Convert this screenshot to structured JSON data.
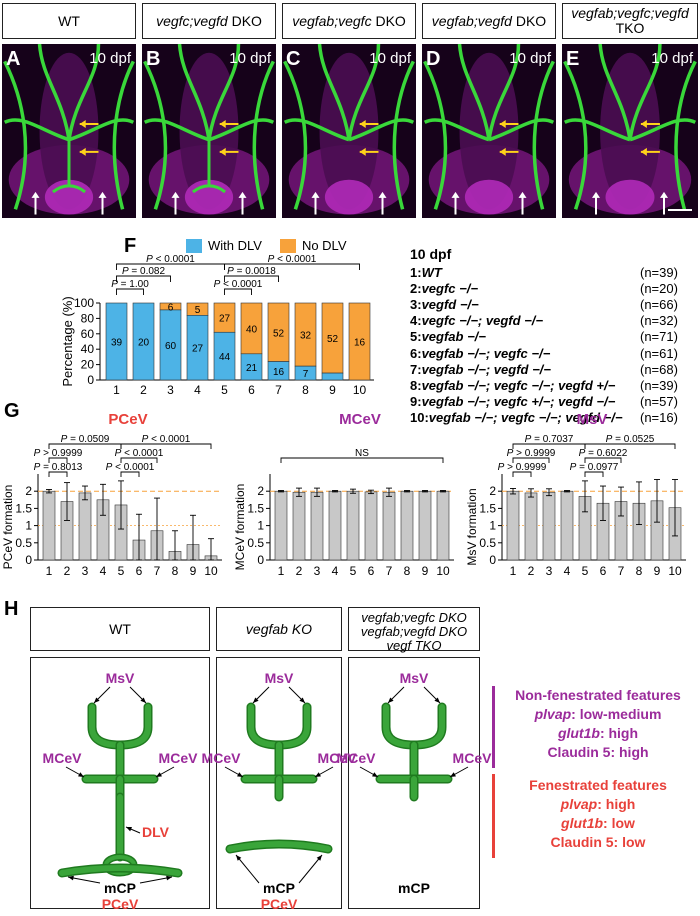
{
  "panel_headers": [
    {
      "id": "A",
      "line1": "WT",
      "line2": ""
    },
    {
      "id": "B",
      "line1": "vegfc;vegfd",
      "line1_suffix": " DKO",
      "line2": ""
    },
    {
      "id": "C",
      "line1": "vegfab;vegfc",
      "line1_suffix": " DKO",
      "line2": ""
    },
    {
      "id": "D",
      "line1": "vegfab;vegfd",
      "line1_suffix": " DKO",
      "line2": ""
    },
    {
      "id": "E",
      "line1": "vegfab;vegfc;vegfd",
      "line1_suffix": "",
      "line2": "TKO"
    }
  ],
  "micro_labels": [
    "A",
    "B",
    "C",
    "D",
    "E"
  ],
  "dpf_label": "10 dpf",
  "panelF": {
    "label": "F",
    "legend": [
      {
        "name": "With DLV",
        "color": "#4db3e6"
      },
      {
        "name": "No DLV",
        "color": "#f7a23b"
      }
    ],
    "cond_title": "10 dpf",
    "conditions": [
      {
        "n": "1:",
        "g": "WT",
        "count": "(n=39)"
      },
      {
        "n": "2:",
        "g": "vegfc −/−",
        "count": "(n=20)"
      },
      {
        "n": "3:",
        "g": "vegfd −/−",
        "count": "(n=66)"
      },
      {
        "n": "4:",
        "g": "vegfc −/−; vegfd −/−",
        "count": "(n=32)"
      },
      {
        "n": "5:",
        "g": "vegfab −/−",
        "count": "(n=71)"
      },
      {
        "n": "6:",
        "g": "vegfab −/−; vegfc −/−",
        "count": "(n=61)"
      },
      {
        "n": "7:",
        "g": "vegfab −/−; vegfd −/−",
        "count": "(n=68)"
      },
      {
        "n": "8:",
        "g": "vegfab −/−; vegfc −/−; vegfd +/−",
        "count": "(n=39)"
      },
      {
        "n": "9:",
        "g": "vegfab −/−; vegfc +/−; vegfd −/−",
        "count": "(n=57)"
      },
      {
        "n": "10:",
        "g": "vegfab −/−; vegfc −/−; vegfd −/−",
        "count": "(n=16)"
      }
    ],
    "pvals": [
      "P < 0.0001",
      "P = 0.082",
      "P = 1.00",
      "P < 0.0001",
      "P = 0.0018",
      "P < 0.0001"
    ]
  },
  "chart_data": [
    {
      "type": "bar",
      "stacked": true,
      "categories": [
        "1",
        "2",
        "3",
        "4",
        "5",
        "6",
        "7",
        "8",
        "9",
        "10"
      ],
      "series": [
        {
          "name": "With DLV",
          "values": [
            100,
            100,
            91,
            84,
            62,
            34,
            24,
            18,
            9,
            0
          ],
          "counts": [
            "39",
            "20",
            "60",
            "27",
            "44",
            "21",
            "16",
            "7",
            "",
            ""
          ]
        },
        {
          "name": "No DLV",
          "values": [
            0,
            0,
            9,
            16,
            38,
            66,
            76,
            82,
            91,
            100
          ],
          "counts": [
            "",
            "",
            "6",
            "5",
            "27",
            "40",
            "52",
            "32",
            "52",
            "16"
          ]
        }
      ],
      "ylabel": "Percentage (%)",
      "ylim": [
        0,
        100
      ],
      "yticks": [
        "0",
        "20",
        "40",
        "60",
        "80",
        "100"
      ]
    },
    {
      "type": "bar",
      "title": "PCeV",
      "categories": [
        "1",
        "2",
        "3",
        "4",
        "5",
        "6",
        "7",
        "8",
        "9",
        "10"
      ],
      "values": [
        2.0,
        1.7,
        1.95,
        1.75,
        1.6,
        0.58,
        0.85,
        0.25,
        0.45,
        0.12
      ],
      "errors": [
        0.05,
        0.55,
        0.2,
        0.45,
        0.7,
        0.75,
        0.95,
        0.6,
        0.85,
        0.5
      ],
      "ylabel": "PCeV formation",
      "ylim": [
        0,
        2.5
      ],
      "yticks": [
        "0",
        "0.5",
        "1",
        "1.5",
        "2"
      ],
      "pvals": [
        "P = 0.0509",
        "P > 0.9999",
        "P = 0.8013",
        "P < 0.0001",
        "P < 0.0001",
        "P < 0.0001"
      ]
    },
    {
      "type": "bar",
      "title": "MCeV",
      "categories": [
        "1",
        "2",
        "3",
        "4",
        "5",
        "6",
        "7",
        "8",
        "9",
        "10"
      ],
      "values": [
        2.0,
        1.97,
        1.97,
        2.0,
        2.0,
        1.98,
        1.97,
        2.0,
        2.0,
        2.0
      ],
      "errors": [
        0.02,
        0.12,
        0.12,
        0.02,
        0.06,
        0.05,
        0.12,
        0.02,
        0.02,
        0.02
      ],
      "ylabel": "MCeV formation",
      "ylim": [
        0,
        2.5
      ],
      "yticks": [
        "0",
        "0.5",
        "1",
        "1.5",
        "2"
      ],
      "pvals": [
        "NS"
      ]
    },
    {
      "type": "bar",
      "title": "MsV",
      "categories": [
        "1",
        "2",
        "3",
        "4",
        "5",
        "6",
        "7",
        "8",
        "9",
        "10"
      ],
      "values": [
        2.0,
        1.95,
        1.97,
        2.0,
        1.85,
        1.65,
        1.7,
        1.65,
        1.72,
        1.52
      ],
      "errors": [
        0.08,
        0.12,
        0.1,
        0.02,
        0.45,
        0.5,
        0.42,
        0.62,
        0.62,
        0.82
      ],
      "ylabel": "MsV formation",
      "ylim": [
        0,
        2.5
      ],
      "yticks": [
        "0",
        "0.5",
        "1",
        "1.5",
        "2"
      ],
      "pvals": [
        "P = 0.7037",
        "P > 0.9999",
        "P > 0.9999",
        "P = 0.0525",
        "P = 0.6022",
        "P = 0.0977"
      ]
    }
  ],
  "panelG": {
    "label": "G"
  },
  "panelH": {
    "label": "H",
    "headers": [
      "WT",
      "vegfab KO",
      "vegfab;vegfc DKO",
      "vegfab;vegfd DKO",
      "vegf TKO"
    ],
    "labels": {
      "msv": "MsV",
      "mcev": "MCeV",
      "dlv": "DLV",
      "mcp": "mCP",
      "pcev": "PCeV"
    },
    "nonfen": {
      "title": "Non-fenestrated features",
      "l1a": "plvap",
      "l1b": ": low-medium",
      "l2a": "glut1b",
      "l2b": ": high",
      "l3": "Claudin 5: high"
    },
    "fen": {
      "title": "Fenestrated features",
      "l1a": "plvap",
      "l1b": ": high",
      "l2a": "glut1b",
      "l2b": ": low",
      "l3": "Claudin 5: low"
    }
  },
  "colors": {
    "purple": "#9b2b9b",
    "red": "#e8413a",
    "green": "#3aa53a",
    "blue": "#4db3e6",
    "orange": "#f7a23b",
    "gray": "#c8c8c8"
  }
}
